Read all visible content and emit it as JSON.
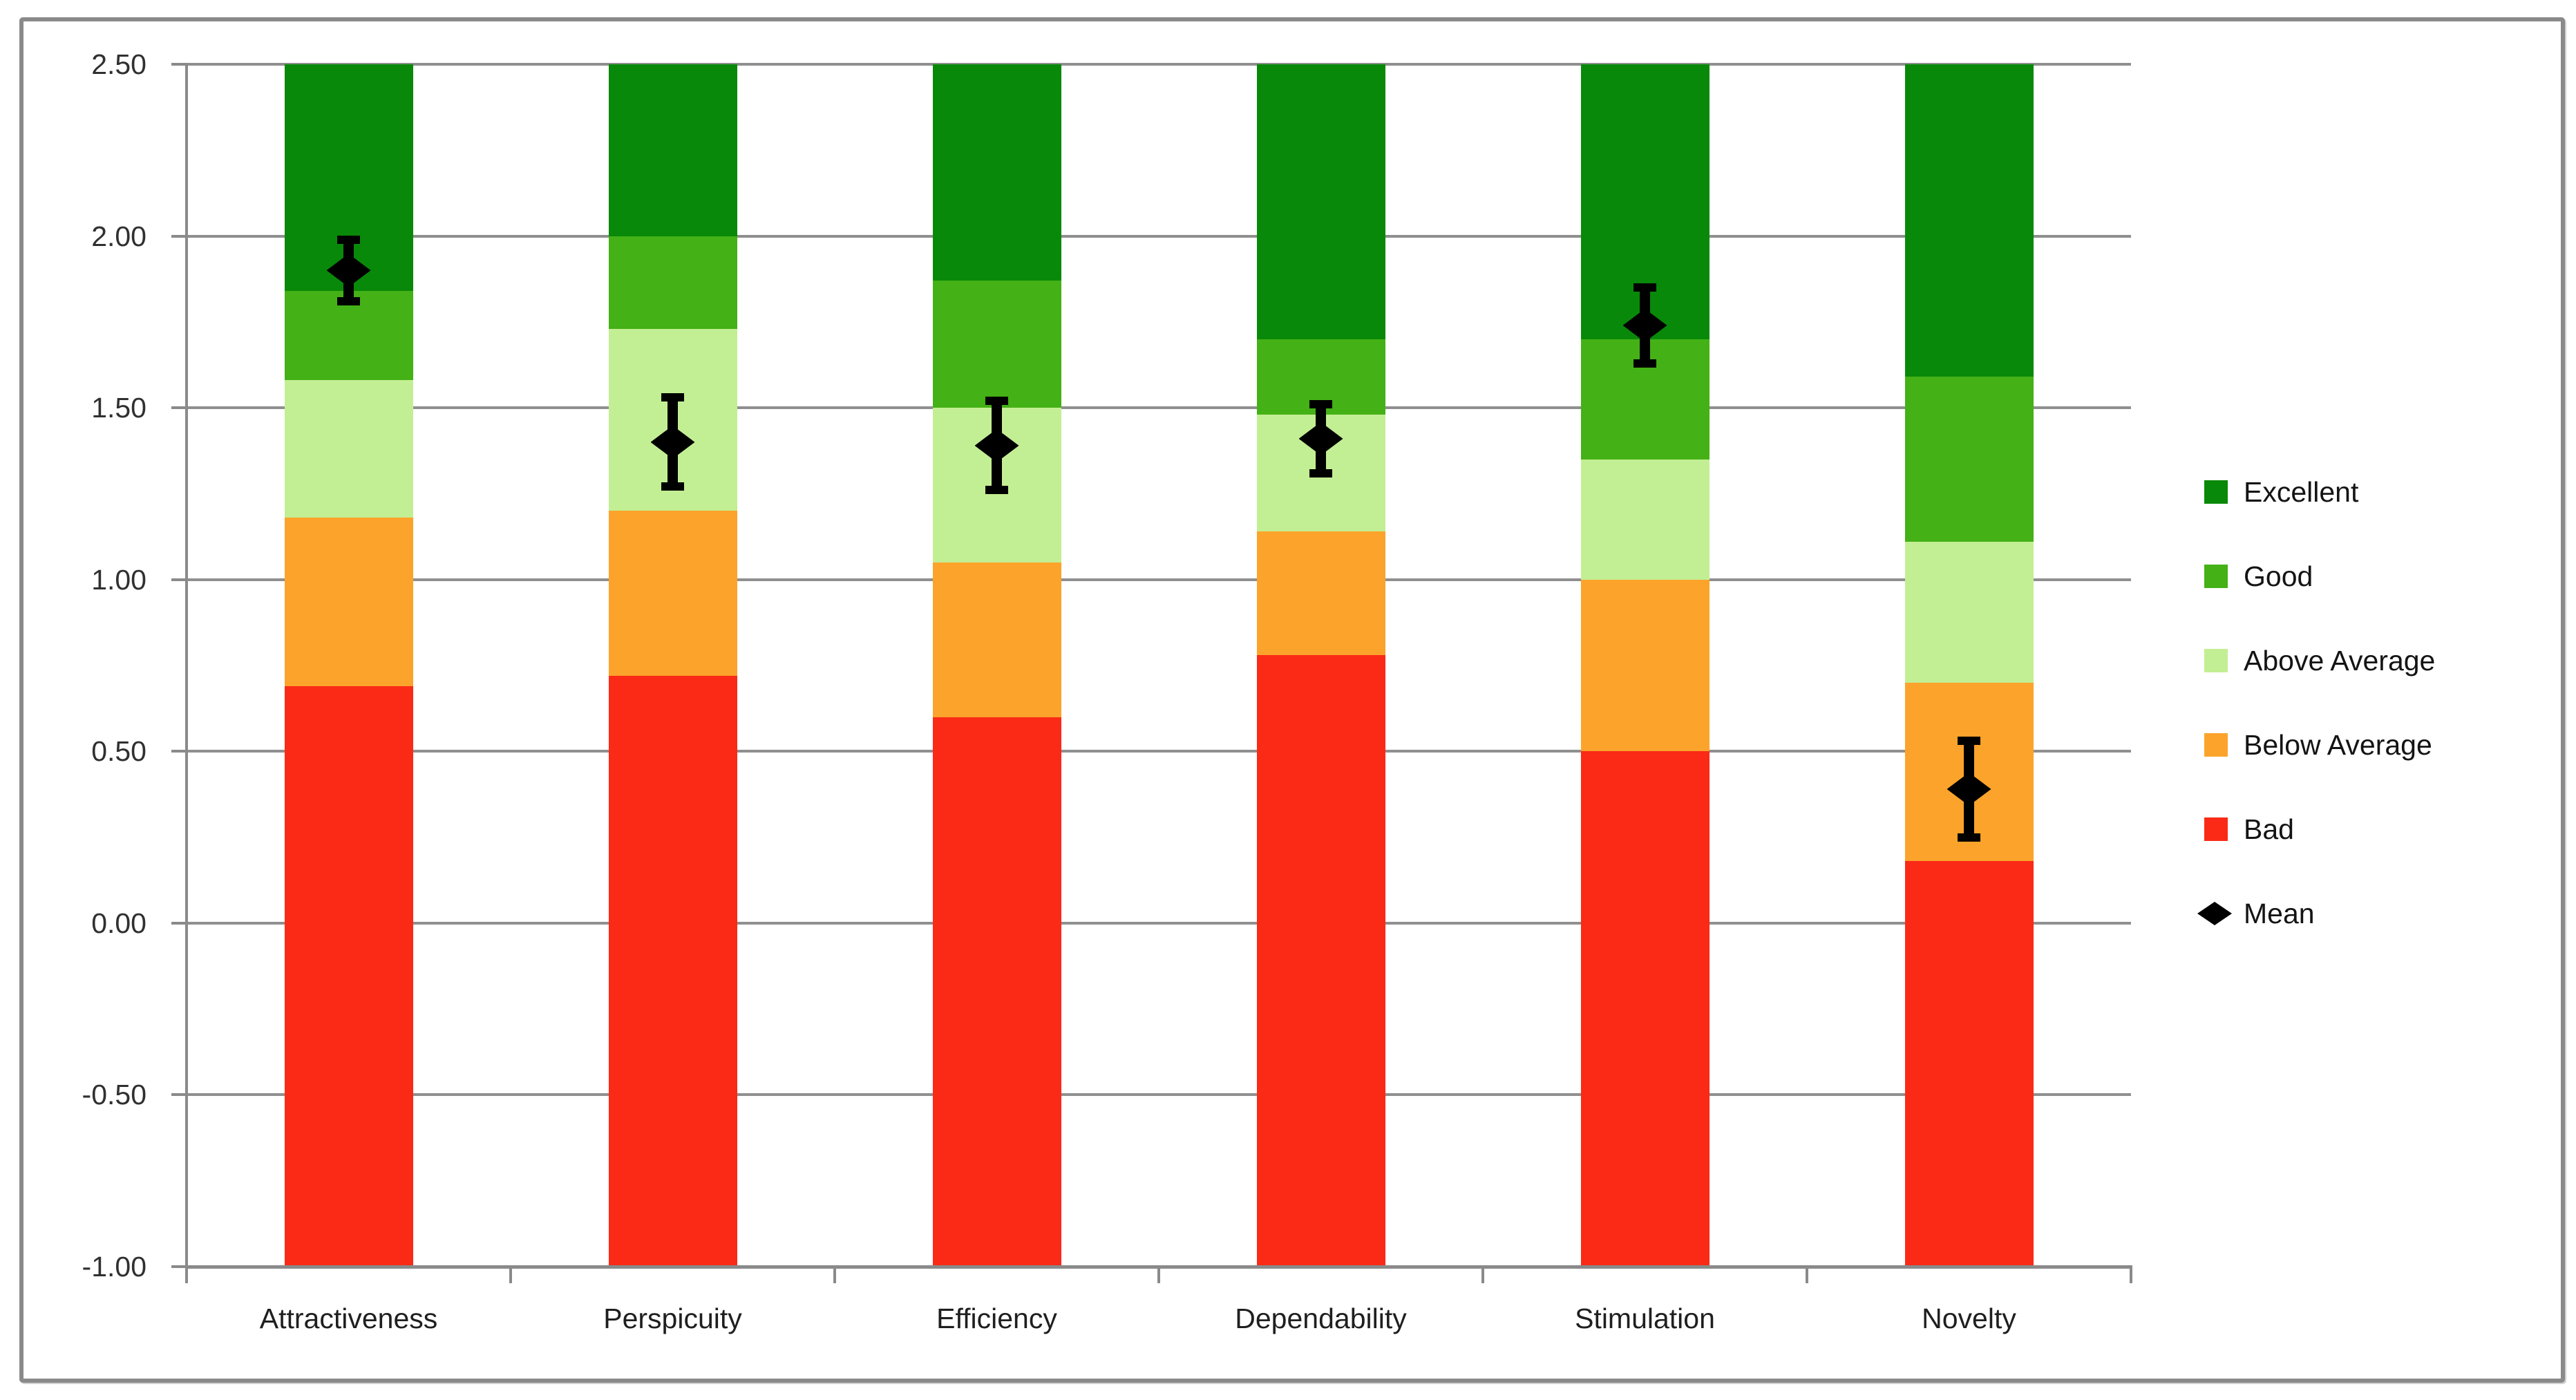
{
  "chart_data": {
    "type": "bar",
    "variant": "stacked-benchmark",
    "title": "",
    "categories": [
      "Attractiveness",
      "Perspicuity",
      "Efficiency",
      "Dependability",
      "Stimulation",
      "Novelty"
    ],
    "base_value": -1.0,
    "series": [
      {
        "name": "Bad",
        "color": "#fa2a16",
        "tops": [
          0.69,
          0.72,
          0.6,
          0.78,
          0.5,
          0.18
        ]
      },
      {
        "name": "Below Average",
        "color": "#fca32b",
        "tops": [
          1.18,
          1.2,
          1.05,
          1.14,
          1.0,
          0.7
        ]
      },
      {
        "name": "Above Average",
        "color": "#c3ef94",
        "tops": [
          1.58,
          1.73,
          1.5,
          1.48,
          1.35,
          1.11
        ]
      },
      {
        "name": "Good",
        "color": "#44b116",
        "tops": [
          1.84,
          2.0,
          1.87,
          1.7,
          1.7,
          1.59
        ]
      },
      {
        "name": "Excellent",
        "color": "#098909",
        "tops": [
          2.5,
          2.5,
          2.5,
          2.5,
          2.5,
          2.5
        ]
      }
    ],
    "mean_series": {
      "name": "Mean",
      "color": "#000000",
      "values": [
        1.9,
        1.4,
        1.39,
        1.41,
        1.74,
        0.39
      ],
      "error": [
        0.09,
        0.13,
        0.13,
        0.1,
        0.11,
        0.14
      ]
    },
    "y_axis": {
      "min": -1.0,
      "max": 2.5,
      "step": 0.5,
      "tick_labels": [
        "2.50",
        "2.00",
        "1.50",
        "1.00",
        "0.50",
        "0.00",
        "-0.50",
        "-1.00"
      ]
    },
    "x_axis": {
      "labels": [
        "Attractiveness",
        "Perspicuity",
        "Efficiency",
        "Dependability",
        "Stimulation",
        "Novelty"
      ]
    },
    "legend": {
      "position": "right",
      "items": [
        {
          "label": "Excellent",
          "swatch": "square",
          "color": "#098909"
        },
        {
          "label": "Good",
          "swatch": "square",
          "color": "#44b116"
        },
        {
          "label": "Above Average",
          "swatch": "square",
          "color": "#c3ef94"
        },
        {
          "label": "Below Average",
          "swatch": "square",
          "color": "#fca32b"
        },
        {
          "label": "Bad",
          "swatch": "square",
          "color": "#fa2a16"
        },
        {
          "label": "Mean",
          "swatch": "diamond",
          "color": "#000000"
        }
      ]
    },
    "grid": true,
    "ylim": [
      -1.0,
      2.5
    ]
  }
}
